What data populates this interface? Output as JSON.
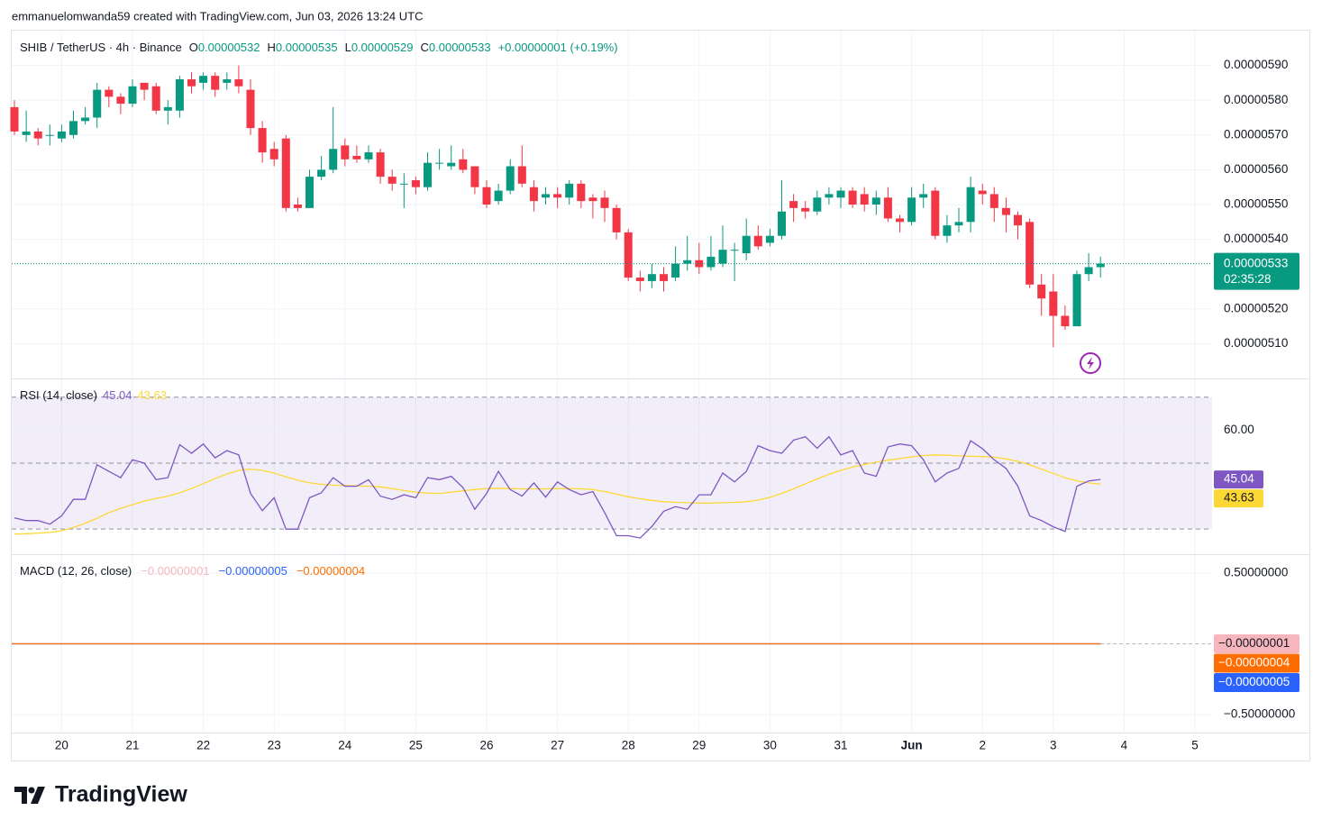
{
  "chart_data": {
    "type": "candlestick",
    "attribution": "emmanuelomwanda59 created with TradingView.com, Jun 03, 2026 13:24 UTC",
    "title": "SHIB / TetherUS · 4h · Binance",
    "ohlc_header": [
      {
        "label": "O",
        "value": 5.32e-06
      },
      {
        "label": "H",
        "value": 5.35e-06
      },
      {
        "label": "L",
        "value": 5.29e-06
      },
      {
        "label": "C",
        "value": 5.33e-06
      }
    ],
    "change": "+0.00000001 (+0.19%)",
    "up_color": "#089981",
    "down_color": "#f23645",
    "open": [
      5.78e-06,
      5.7e-06,
      5.71e-06,
      5.7e-06,
      5.69e-06,
      5.7e-06,
      5.74e-06,
      5.75e-06,
      5.83e-06,
      5.81e-06,
      5.79e-06,
      5.85e-06,
      5.84e-06,
      5.77e-06,
      5.77e-06,
      5.86e-06,
      5.85e-06,
      5.87e-06,
      5.85e-06,
      5.86e-06,
      5.83e-06,
      5.72e-06,
      5.66e-06,
      5.69e-06,
      5.5e-06,
      5.49e-06,
      5.58e-06,
      5.6e-06,
      5.67e-06,
      5.64e-06,
      5.63e-06,
      5.65e-06,
      5.58e-06,
      5.56e-06,
      5.57e-06,
      5.55e-06,
      5.62e-06,
      5.61e-06,
      5.63e-06,
      5.61e-06,
      5.55e-06,
      5.51e-06,
      5.54e-06,
      5.61e-06,
      5.55e-06,
      5.52e-06,
      5.53e-06,
      5.52e-06,
      5.56e-06,
      5.52e-06,
      5.52e-06,
      5.49e-06,
      5.42e-06,
      5.29e-06,
      5.28e-06,
      5.3e-06,
      5.29e-06,
      5.33e-06,
      5.34e-06,
      5.32e-06,
      5.33e-06,
      5.37e-06,
      5.36e-06,
      5.41e-06,
      5.39e-06,
      5.41e-06,
      5.51e-06,
      5.49e-06,
      5.48e-06,
      5.52e-06,
      5.52e-06,
      5.54e-06,
      5.53e-06,
      5.5e-06,
      5.52e-06,
      5.46e-06,
      5.45e-06,
      5.52e-06,
      5.54e-06,
      5.41e-06,
      5.44e-06,
      5.45e-06,
      5.54e-06,
      5.53e-06,
      5.49e-06,
      5.47e-06,
      5.45e-06,
      5.27e-06,
      5.25e-06,
      5.18e-06,
      5.15e-06,
      5.3e-06,
      5.32e-06
    ],
    "high": [
      5.8e-06,
      5.77e-06,
      5.72e-06,
      5.73e-06,
      5.73e-06,
      5.77e-06,
      5.78e-06,
      5.85e-06,
      5.84e-06,
      5.82e-06,
      5.86e-06,
      5.85e-06,
      5.85e-06,
      5.8e-06,
      5.87e-06,
      5.88e-06,
      5.88e-06,
      5.88e-06,
      5.88e-06,
      5.9e-06,
      5.86e-06,
      5.74e-06,
      5.68e-06,
      5.7e-06,
      5.52e-06,
      5.6e-06,
      5.64e-06,
      5.78e-06,
      5.69e-06,
      5.67e-06,
      5.67e-06,
      5.66e-06,
      5.6e-06,
      5.59e-06,
      5.58e-06,
      5.65e-06,
      5.66e-06,
      5.67e-06,
      5.66e-06,
      5.61e-06,
      5.57e-06,
      5.56e-06,
      5.63e-06,
      5.67e-06,
      5.57e-06,
      5.55e-06,
      5.55e-06,
      5.57e-06,
      5.57e-06,
      5.53e-06,
      5.54e-06,
      5.5e-06,
      5.43e-06,
      5.31e-06,
      5.33e-06,
      5.32e-06,
      5.38e-06,
      5.41e-06,
      5.39e-06,
      5.41e-06,
      5.44e-06,
      5.39e-06,
      5.46e-06,
      5.44e-06,
      5.43e-06,
      5.57e-06,
      5.53e-06,
      5.51e-06,
      5.54e-06,
      5.55e-06,
      5.55e-06,
      5.55e-06,
      5.55e-06,
      5.54e-06,
      5.55e-06,
      5.47e-06,
      5.55e-06,
      5.56e-06,
      5.55e-06,
      5.47e-06,
      5.49e-06,
      5.58e-06,
      5.56e-06,
      5.55e-06,
      5.52e-06,
      5.48e-06,
      5.46e-06,
      5.3e-06,
      5.3e-06,
      5.21e-06,
      5.31e-06,
      5.36e-06,
      5.35e-06
    ],
    "low": [
      5.7e-06,
      5.68e-06,
      5.67e-06,
      5.67e-06,
      5.68e-06,
      5.69e-06,
      5.73e-06,
      5.72e-06,
      5.78e-06,
      5.76e-06,
      5.78e-06,
      5.8e-06,
      5.76e-06,
      5.73e-06,
      5.75e-06,
      5.82e-06,
      5.83e-06,
      5.81e-06,
      5.83e-06,
      5.82e-06,
      5.7e-06,
      5.62e-06,
      5.61e-06,
      5.48e-06,
      5.48e-06,
      5.49e-06,
      5.57e-06,
      5.59e-06,
      5.61e-06,
      5.62e-06,
      5.62e-06,
      5.56e-06,
      5.54e-06,
      5.49e-06,
      5.53e-06,
      5.54e-06,
      5.6e-06,
      5.6e-06,
      5.59e-06,
      5.53e-06,
      5.49e-06,
      5.5e-06,
      5.53e-06,
      5.55e-06,
      5.48e-06,
      5.5e-06,
      5.49e-06,
      5.5e-06,
      5.49e-06,
      5.46e-06,
      5.45e-06,
      5.4e-06,
      5.28e-06,
      5.25e-06,
      5.26e-06,
      5.25e-06,
      5.28e-06,
      5.31e-06,
      5.3e-06,
      5.31e-06,
      5.32e-06,
      5.28e-06,
      5.34e-06,
      5.37e-06,
      5.38e-06,
      5.4e-06,
      5.45e-06,
      5.46e-06,
      5.47e-06,
      5.5e-06,
      5.49e-06,
      5.49e-06,
      5.48e-06,
      5.47e-06,
      5.45e-06,
      5.42e-06,
      5.44e-06,
      5.49e-06,
      5.4e-06,
      5.39e-06,
      5.42e-06,
      5.42e-06,
      5.5e-06,
      5.45e-06,
      5.42e-06,
      5.4e-06,
      5.26e-06,
      5.18e-06,
      5.09e-06,
      5.14e-06,
      5.15e-06,
      5.28e-06,
      5.29e-06
    ],
    "close": [
      5.71e-06,
      5.71e-06,
      5.69e-06,
      5.7e-06,
      5.71e-06,
      5.74e-06,
      5.75e-06,
      5.83e-06,
      5.81e-06,
      5.79e-06,
      5.84e-06,
      5.83e-06,
      5.77e-06,
      5.78e-06,
      5.86e-06,
      5.84e-06,
      5.87e-06,
      5.83e-06,
      5.86e-06,
      5.84e-06,
      5.72e-06,
      5.65e-06,
      5.63e-06,
      5.49e-06,
      5.49e-06,
      5.58e-06,
      5.6e-06,
      5.66e-06,
      5.63e-06,
      5.63e-06,
      5.65e-06,
      5.58e-06,
      5.56e-06,
      5.56e-06,
      5.55e-06,
      5.62e-06,
      5.62e-06,
      5.62e-06,
      5.6e-06,
      5.55e-06,
      5.5e-06,
      5.54e-06,
      5.61e-06,
      5.56e-06,
      5.51e-06,
      5.53e-06,
      5.52e-06,
      5.56e-06,
      5.51e-06,
      5.51e-06,
      5.49e-06,
      5.42e-06,
      5.29e-06,
      5.28e-06,
      5.3e-06,
      5.28e-06,
      5.33e-06,
      5.34e-06,
      5.32e-06,
      5.35e-06,
      5.37e-06,
      5.37e-06,
      5.41e-06,
      5.38e-06,
      5.41e-06,
      5.48e-06,
      5.49e-06,
      5.48e-06,
      5.52e-06,
      5.53e-06,
      5.54e-06,
      5.5e-06,
      5.5e-06,
      5.52e-06,
      5.46e-06,
      5.45e-06,
      5.52e-06,
      5.53e-06,
      5.41e-06,
      5.44e-06,
      5.45e-06,
      5.55e-06,
      5.53e-06,
      5.49e-06,
      5.47e-06,
      5.44e-06,
      5.27e-06,
      5.23e-06,
      5.18e-06,
      5.15e-06,
      5.3e-06,
      5.32e-06,
      5.33e-06
    ],
    "xlim": [
      -0.23,
      101.45
    ],
    "xticks": [
      {
        "value": 4,
        "label": "20"
      },
      {
        "value": 10,
        "label": "21"
      },
      {
        "value": 16,
        "label": "22"
      },
      {
        "value": 22,
        "label": "23"
      },
      {
        "value": 28,
        "label": "24"
      },
      {
        "value": 34,
        "label": "25"
      },
      {
        "value": 40,
        "label": "26"
      },
      {
        "value": 46,
        "label": "27"
      },
      {
        "value": 52,
        "label": "28"
      },
      {
        "value": 58,
        "label": "29"
      },
      {
        "value": 64,
        "label": "30"
      },
      {
        "value": 70,
        "label": "31"
      },
      {
        "value": 76,
        "label": "Jun"
      },
      {
        "value": 82,
        "label": "2"
      },
      {
        "value": 88,
        "label": "3"
      },
      {
        "value": 94,
        "label": "4"
      },
      {
        "value": 100,
        "label": "5"
      }
    ],
    "ylim": [
      5e-06,
      6e-06
    ],
    "yticks": [
      {
        "value": 5.9e-06,
        "label": "0.00000590"
      },
      {
        "value": 5.8e-06,
        "label": "0.00000580"
      },
      {
        "value": 5.7e-06,
        "label": "0.00000570"
      },
      {
        "value": 5.6e-06,
        "label": "0.00000560"
      },
      {
        "value": 5.5e-06,
        "label": "0.00000550"
      },
      {
        "value": 5.4e-06,
        "label": "0.00000540"
      },
      {
        "value": 5.2e-06,
        "label": "0.00000520"
      },
      {
        "value": 5.1e-06,
        "label": "0.00000510"
      }
    ],
    "grid": true,
    "last_price": {
      "value": 5.33e-06,
      "label": "0.00000533"
    },
    "countdown": "02:35:28",
    "rsi": {
      "title": "RSI (14, close)",
      "ylim": [
        22.4,
        75.4
      ],
      "yticks": [
        {
          "value": 60,
          "label": "60.00"
        }
      ],
      "bands": [
        70,
        50,
        30
      ],
      "band_color": "#7e57c2",
      "series": [
        {
          "color": "#7e57c2",
          "values": [
            33.4,
            32.6,
            32.6,
            31.5,
            34,
            39,
            39,
            49.5,
            47.5,
            45.6,
            51,
            50,
            45,
            45.6,
            55.6,
            53,
            55.8,
            51.6,
            53.8,
            52.5,
            40.8,
            35.6,
            39.5,
            30,
            30,
            39.5,
            41,
            45.6,
            43,
            43,
            45,
            40,
            39,
            40.4,
            39.5,
            45.6,
            45,
            46,
            42.6,
            36,
            40.8,
            47.5,
            42,
            40,
            44,
            39.7,
            44.3,
            42,
            40.4,
            41.4,
            35,
            28,
            28,
            27.3,
            30.8,
            35.4,
            36.8,
            36,
            40.4,
            40.4,
            47,
            44.3,
            47.5,
            55.3,
            53.8,
            53,
            57,
            58,
            54.5,
            58,
            52.5,
            53.8,
            47,
            46,
            54.9,
            55.8,
            55.3,
            51,
            44.3,
            47,
            48.4,
            56.8,
            54.4,
            51,
            48.4,
            43,
            34,
            32.6,
            30.7,
            29.3,
            43,
            44.6,
            45.04
          ]
        },
        {
          "color": "#fdd835",
          "values": [
            28.5,
            28.6,
            28.8,
            29,
            29.5,
            30.5,
            31.8,
            33.3,
            35,
            36.3,
            37.4,
            38.5,
            39.3,
            40,
            41,
            42.3,
            43.8,
            45.3,
            46.7,
            47.8,
            48.2,
            47.8,
            47,
            45.8,
            44.8,
            44,
            43.6,
            43.3,
            43.2,
            43.1,
            43,
            42.8,
            42.3,
            41.7,
            41.2,
            40.9,
            40.8,
            41.2,
            41.6,
            42,
            42.3,
            42.4,
            42.3,
            42.2,
            42.2,
            42.2,
            42.3,
            42.3,
            42.2,
            42,
            41.4,
            40.6,
            39.8,
            39.2,
            38.7,
            38.3,
            38.1,
            38,
            37.9,
            37.9,
            38,
            38.1,
            38.3,
            38.8,
            39.6,
            40.8,
            42.2,
            43.7,
            45.2,
            46.6,
            47.8,
            48.8,
            49.6,
            50.3,
            50.9,
            51.4,
            51.9,
            52.3,
            52.5,
            52.4,
            52.2,
            52.1,
            52,
            51.8,
            51.3,
            50.5,
            49.5,
            48.2,
            46.9,
            45.6,
            44.6,
            44,
            43.63
          ]
        }
      ]
    },
    "macd": {
      "title": "MACD (12, 26, close)",
      "ylim": [
        -0.627,
        0.627
      ],
      "yticks": [
        {
          "value": 0.5,
          "label": "0.50000000"
        },
        {
          "value": -0.5,
          "label": "−0.50000000"
        }
      ],
      "series": [
        {
          "color": "#f7b6bd",
          "value": -1e-08,
          "label": "−0.00000001"
        },
        {
          "color": "#2962ff",
          "value": -5e-08,
          "label": "−0.00000005"
        },
        {
          "color": "#ff6d00",
          "value": -4e-08,
          "label": "−0.00000004"
        }
      ]
    }
  },
  "footer": {
    "logo": "TradingView"
  }
}
